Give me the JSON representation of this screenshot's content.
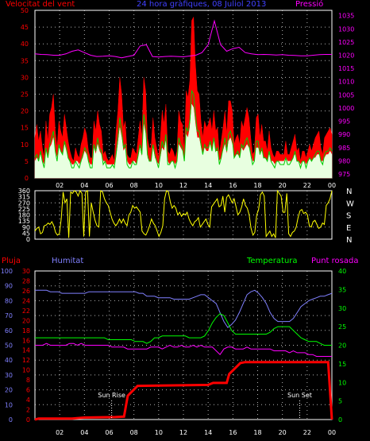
{
  "title": "24 hora gràfiques, 08 Juliol 2013",
  "colors": {
    "wind": "#ff0000",
    "gust": "#ff0000",
    "avg_wind": "#ffffff",
    "pressure": "#ff00ff",
    "direction": "#ffff00",
    "rain": "#ff0000",
    "humidity": "#8080ff",
    "temperature": "#00ff00",
    "dewpoint": "#ff00ff",
    "grid": "#ffffff",
    "blue_text": "#4040ff"
  },
  "chart_data": [
    {
      "type": "line",
      "name": "wind-pressure",
      "labels": {
        "left": "Velocitat del vent",
        "right": "Pressió"
      },
      "x_ticks": [
        "02",
        "04",
        "06",
        "08",
        "10",
        "12",
        "14",
        "16",
        "18",
        "20",
        "22",
        "00"
      ],
      "y_left_ticks": [
        0,
        5,
        10,
        15,
        20,
        25,
        30,
        35,
        40,
        45,
        50
      ],
      "y_right_ticks": [
        975,
        980,
        985,
        990,
        995,
        1000,
        1005,
        1010,
        1015,
        1020,
        1025,
        1030,
        1035
      ],
      "ylim_left": [
        0,
        50
      ],
      "ylim_right": [
        973.5,
        1037
      ],
      "series": [
        {
          "key": "gust",
          "values": [
            12,
            16,
            11,
            14,
            9,
            6,
            17,
            11,
            19,
            21,
            25,
            14,
            9,
            17,
            14,
            12,
            19,
            15,
            11,
            8,
            6,
            5,
            9,
            7,
            6,
            10,
            12,
            15,
            13,
            8,
            6,
            6,
            17,
            14,
            20,
            16,
            14,
            7,
            8,
            6,
            5,
            6,
            7,
            5,
            14,
            20,
            30,
            25,
            15,
            17,
            7,
            6,
            6,
            9,
            8,
            7,
            12,
            17,
            12,
            30,
            26,
            12,
            9,
            9,
            18,
            12,
            9,
            6,
            12,
            20,
            16,
            22,
            8,
            7,
            9,
            8,
            6,
            8,
            20,
            17,
            16,
            8,
            26,
            24,
            29,
            47,
            48,
            34,
            26,
            25,
            17,
            12,
            17,
            15,
            16,
            18,
            14,
            20,
            14,
            15,
            7,
            11,
            15,
            20,
            13,
            23,
            23,
            20,
            10,
            12,
            13,
            10,
            17,
            15,
            18,
            21,
            18,
            12,
            7,
            8,
            18,
            19,
            12,
            16,
            11,
            11,
            8,
            14,
            9,
            7,
            6,
            8,
            8,
            7,
            7,
            7,
            11,
            7,
            7,
            9,
            11,
            13,
            8,
            9,
            5,
            8,
            8,
            6,
            8,
            10,
            8,
            10,
            12,
            13,
            14,
            9,
            7,
            12,
            13,
            14,
            15,
            13
          ]
        },
        {
          "key": "wind",
          "values": [
            6,
            7,
            5,
            8,
            5,
            3,
            9,
            6,
            10,
            12,
            14,
            8,
            5,
            10,
            8,
            7,
            11,
            9,
            6,
            5,
            3,
            3,
            5,
            4,
            3,
            5,
            7,
            9,
            8,
            5,
            3,
            3,
            10,
            8,
            12,
            9,
            8,
            4,
            5,
            3,
            3,
            3,
            4,
            3,
            7,
            12,
            18,
            14,
            9,
            10,
            4,
            3,
            3,
            5,
            4,
            4,
            7,
            10,
            7,
            19,
            15,
            7,
            5,
            5,
            10,
            7,
            5,
            3,
            7,
            11,
            9,
            13,
            4,
            4,
            5,
            5,
            3,
            5,
            12,
            10,
            9,
            5,
            15,
            14,
            17,
            26,
            25,
            19,
            14,
            14,
            10,
            7,
            10,
            9,
            9,
            11,
            8,
            12,
            8,
            9,
            4,
            6,
            9,
            12,
            8,
            13,
            14,
            12,
            6,
            7,
            8,
            6,
            10,
            9,
            11,
            12,
            10,
            7,
            4,
            5,
            11,
            11,
            7,
            9,
            6,
            6,
            5,
            8,
            5,
            4,
            3,
            5,
            5,
            4,
            4,
            4,
            6,
            4,
            4,
            5,
            6,
            8,
            5,
            5,
            3,
            5,
            5,
            3,
            5,
            6,
            5,
            6,
            7,
            8,
            8,
            5,
            4,
            7,
            8,
            8,
            9,
            8
          ]
        },
        {
          "key": "avg_wind",
          "values": [
            5,
            6,
            5,
            7,
            5,
            4,
            8,
            6,
            9,
            10,
            12,
            8,
            6,
            9,
            8,
            7,
            10,
            8,
            6,
            5,
            4,
            4,
            5,
            5,
            4,
            5,
            6,
            8,
            7,
            5,
            4,
            4,
            9,
            7,
            10,
            8,
            7,
            5,
            5,
            4,
            4,
            4,
            4,
            4,
            6,
            10,
            15,
            12,
            8,
            9,
            5,
            4,
            4,
            5,
            5,
            4,
            6,
            9,
            6,
            16,
            13,
            6,
            5,
            5,
            9,
            6,
            5,
            4,
            6,
            9,
            8,
            11,
            5,
            4,
            5,
            5,
            4,
            5,
            10,
            9,
            8,
            5,
            13,
            12,
            15,
            22,
            21,
            16,
            12,
            12,
            9,
            7,
            9,
            8,
            8,
            10,
            8,
            11,
            8,
            8,
            5,
            6,
            8,
            10,
            7,
            11,
            12,
            10,
            6,
            7,
            7,
            6,
            9,
            8,
            9,
            10,
            9,
            7,
            5,
            5,
            9,
            9,
            7,
            8,
            6,
            6,
            5,
            7,
            5,
            5,
            4,
            5,
            5,
            5,
            5,
            5,
            6,
            5,
            5,
            5,
            6,
            7,
            5,
            5,
            4,
            5,
            5,
            4,
            5,
            6,
            5,
            6,
            6,
            7,
            7,
            5,
            5,
            6,
            7,
            7,
            8,
            7
          ]
        },
        {
          "key": "pressure",
          "values": [
            1020.5,
            1020.3,
            1020.2,
            1020,
            1020,
            1020.5,
            1021.5,
            1022,
            1021,
            1020,
            1019.5,
            1019.6,
            1019.8,
            1019.5,
            1019,
            1019.5,
            1020,
            1023.5,
            1024,
            1019.5,
            1019.3,
            1019.5,
            1019.6,
            1019.5,
            1019.4,
            1019.7,
            1020,
            1021,
            1024,
            1033,
            1024,
            1021.5,
            1022.5,
            1023,
            1021,
            1020.5,
            1020.2,
            1020.3,
            1020.2,
            1020.1,
            1020.2,
            1020,
            1019.9,
            1019.8,
            1019.8,
            1020,
            1020.2,
            1020.3,
            1020.3
          ]
        }
      ]
    },
    {
      "type": "line",
      "name": "wind-direction",
      "x_ticks": [
        "02",
        "04",
        "06",
        "08",
        "10",
        "12",
        "14",
        "16",
        "18",
        "20",
        "22",
        "00"
      ],
      "y_ticks": [
        0,
        45,
        90,
        135,
        180,
        225,
        270,
        315,
        360
      ],
      "ylim": [
        0,
        360
      ],
      "compass": [
        "N",
        "W",
        "S",
        "E",
        "N"
      ],
      "series": [
        {
          "key": "direction",
          "values": [
            60,
            80,
            90,
            40,
            50,
            100,
            105,
            120,
            110,
            130,
            100,
            50,
            30,
            40,
            150,
            350,
            270,
            300,
            10,
            350,
            340,
            360,
            350,
            320,
            360,
            340,
            20,
            350,
            360,
            20,
            270,
            200,
            140,
            100,
            90,
            360,
            350,
            300,
            270,
            250,
            200,
            150,
            120,
            100,
            120,
            150,
            120,
            150,
            120,
            100,
            180,
            200,
            250,
            230,
            240,
            220,
            200,
            60,
            40,
            30,
            60,
            100,
            150,
            120,
            100,
            60,
            20,
            50,
            100,
            300,
            360,
            350,
            280,
            230,
            250,
            230,
            180,
            200,
            170,
            190,
            180,
            200,
            150,
            120,
            100,
            130,
            140,
            160,
            90,
            110,
            130,
            150,
            110,
            90,
            240,
            260,
            280,
            300,
            240,
            250,
            320,
            200,
            310,
            330,
            300,
            270,
            300,
            240,
            180,
            200,
            240,
            300,
            250,
            230,
            180,
            80,
            30,
            50,
            180,
            220,
            330,
            350,
            320,
            20,
            40,
            60,
            20,
            40,
            10,
            360,
            340,
            320,
            200,
            200,
            340,
            40,
            20,
            50,
            60,
            90,
            160,
            210,
            220,
            190,
            200,
            180,
            100,
            90,
            130,
            140,
            110,
            80,
            90,
            120,
            110,
            250,
            270,
            300,
            360
          ]
        }
      ]
    },
    {
      "type": "line",
      "name": "temperature-rain",
      "labels": {
        "rain": "Pluja",
        "humidity": "Humitat",
        "temperature": "Temperatura",
        "dewpoint": "Punt rosada"
      },
      "x_ticks": [
        "02",
        "04",
        "06",
        "08",
        "10",
        "12",
        "14",
        "16",
        "18",
        "20",
        "22",
        "00"
      ],
      "y_ticks_humidity": [
        0,
        10,
        20,
        30,
        40,
        50,
        60,
        70,
        80,
        90,
        100
      ],
      "y_ticks_rain": [
        0,
        2,
        4,
        6,
        8,
        10,
        12,
        14,
        16,
        18,
        20,
        22,
        24,
        26,
        28,
        30
      ],
      "y_ticks_temp": [
        0,
        5,
        10,
        15,
        20,
        25,
        30,
        35,
        40
      ],
      "ylim_humidity": [
        0,
        100
      ],
      "ylim_rain": [
        0,
        30
      ],
      "ylim_temp": [
        0,
        40
      ],
      "annotations": [
        {
          "text": "Sun Rise",
          "x_hour": 6.2
        },
        {
          "text": "Sun Set",
          "x_hour": 21.4
        }
      ],
      "series": [
        {
          "key": "humidity",
          "values": [
            87,
            87,
            87,
            87,
            86,
            86,
            86,
            85,
            85,
            85,
            85,
            85,
            85,
            85,
            86,
            86,
            86,
            86,
            86,
            86,
            86,
            86,
            86,
            86,
            86,
            86,
            86,
            85,
            85,
            83,
            83,
            83,
            82,
            82,
            82,
            82,
            81,
            81,
            81,
            81,
            81,
            82,
            83,
            84,
            84,
            82,
            80,
            78,
            72,
            66,
            62,
            64,
            67,
            72,
            78,
            84,
            86,
            87,
            85,
            82,
            78,
            72,
            68,
            66,
            66,
            66,
            66,
            68,
            72,
            76,
            78,
            80,
            81,
            82,
            83,
            83,
            84,
            85
          ]
        },
        {
          "key": "temperature",
          "values": [
            22,
            22,
            22,
            22,
            22,
            22,
            22,
            22,
            22,
            22,
            22,
            22,
            22,
            22,
            22,
            22,
            22,
            22,
            22,
            21.5,
            21.5,
            21.5,
            21.5,
            21.5,
            21.5,
            21.5,
            21,
            21,
            21,
            20.5,
            21,
            22,
            22,
            22.5,
            22.5,
            22.5,
            22.5,
            22.5,
            22.5,
            22.5,
            22,
            22,
            22,
            22,
            22.5,
            24,
            26,
            27.5,
            28.5,
            28,
            26,
            24,
            23,
            23,
            23,
            23,
            23,
            23,
            23,
            23,
            23,
            23.5,
            24.5,
            25,
            25,
            25,
            25,
            24,
            23,
            22,
            21.5,
            21,
            21,
            21,
            20.5,
            20,
            20,
            20
          ]
        },
        {
          "key": "dewpoint",
          "values": [
            20,
            20,
            20,
            20.5,
            20,
            20,
            20,
            20,
            20,
            20.5,
            20.5,
            20,
            20.5,
            20,
            20,
            20,
            20,
            20,
            20,
            20,
            19.5,
            19.5,
            19.5,
            19.5,
            19,
            19,
            19,
            19,
            19,
            19,
            19.5,
            19.5,
            19.5,
            19,
            19.5,
            20,
            19.5,
            19.5,
            20,
            19.5,
            19.5,
            20,
            19.5,
            20,
            19.5,
            19.5,
            19.5,
            18.5,
            17.5,
            19,
            19.5,
            19.5,
            19,
            19,
            19,
            19.5,
            19,
            19,
            19,
            19,
            19,
            19,
            18.5,
            18.5,
            18.5,
            18.5,
            18,
            18.5,
            18,
            18,
            18,
            17.5,
            17.5,
            17,
            17,
            17,
            17,
            17
          ]
        },
        {
          "key": "rain",
          "points": [
            [
              0.3,
              0.2
            ],
            [
              3,
              0.2
            ],
            [
              4,
              0.4
            ],
            [
              6.5,
              0.5
            ],
            [
              7.2,
              0.6
            ],
            [
              7.5,
              4.8
            ],
            [
              8.3,
              6.8
            ],
            [
              14,
              7
            ],
            [
              14.4,
              7.4
            ],
            [
              15.5,
              7.4
            ],
            [
              15.7,
              9.2
            ],
            [
              16.6,
              11.4
            ],
            [
              17,
              11.6
            ],
            [
              23.7,
              11.6
            ],
            [
              24,
              0
            ]
          ]
        }
      ]
    }
  ]
}
